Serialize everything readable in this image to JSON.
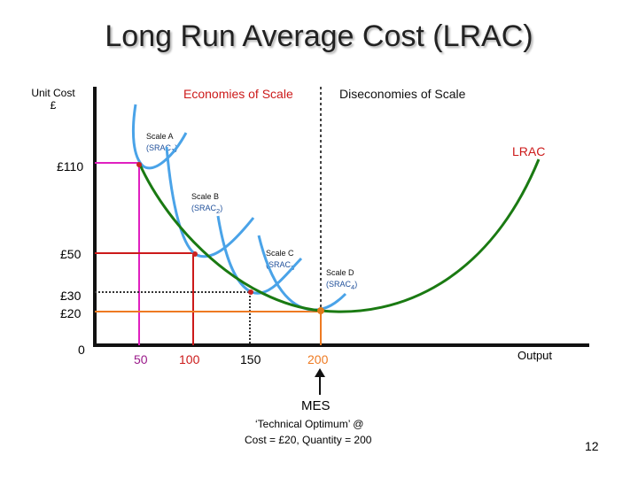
{
  "title": "Long Run Average Cost (LRAC)",
  "axes": {
    "y_label_line1": "Unit Cost",
    "y_label_line2": "£",
    "x_label": "Output",
    "origin": "0"
  },
  "regions": {
    "economies": "Economies of Scale",
    "diseconomies": "Diseconomies of Scale"
  },
  "curves": {
    "lrac": "LRAC",
    "scale_a": {
      "label": "Scale A",
      "sub": "(SRAC",
      "index": "1",
      "close": ")"
    },
    "scale_b": {
      "label": "Scale B",
      "sub": "(SRAC",
      "index": "2",
      "close": ")"
    },
    "scale_c": {
      "label": "Scale C",
      "sub": "(SRAC",
      "index": "3",
      "close": ""
    },
    "scale_d": {
      "label": "Scale D",
      "sub": "(SRAC",
      "index": "4",
      "close": ")"
    }
  },
  "y_ticks": [
    "£110",
    "£50",
    "£30",
    "£20"
  ],
  "x_ticks": [
    "50",
    "100",
    "150",
    "200"
  ],
  "annotation": {
    "mes": "MES",
    "line1": "‘Technical Optimum’ @",
    "line2": "Cost = £20, Quantity = 200"
  },
  "page_number": "12",
  "colors": {
    "lrac": "#1a7a12",
    "srac": "#4aa3e8",
    "markers": "#cc2222",
    "axes": "#111111",
    "text_red": "#cc1a1a",
    "text_green": "#1a7a12",
    "magenta": "#e020c0",
    "orange": "#ee7a22",
    "mes_dot": "#e07a1a"
  }
}
